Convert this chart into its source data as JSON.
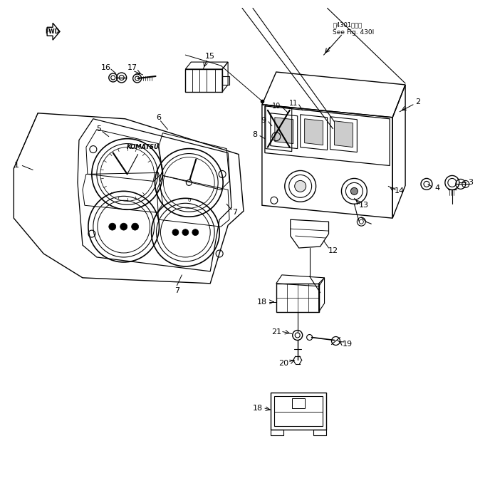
{
  "bg_color": "#ffffff",
  "line_color": "#000000",
  "fig_width": 6.88,
  "fig_height": 7.06,
  "dpi": 100,
  "title_jp": "ㅄ4301图参照",
  "title_en": "See Fig. 430I"
}
